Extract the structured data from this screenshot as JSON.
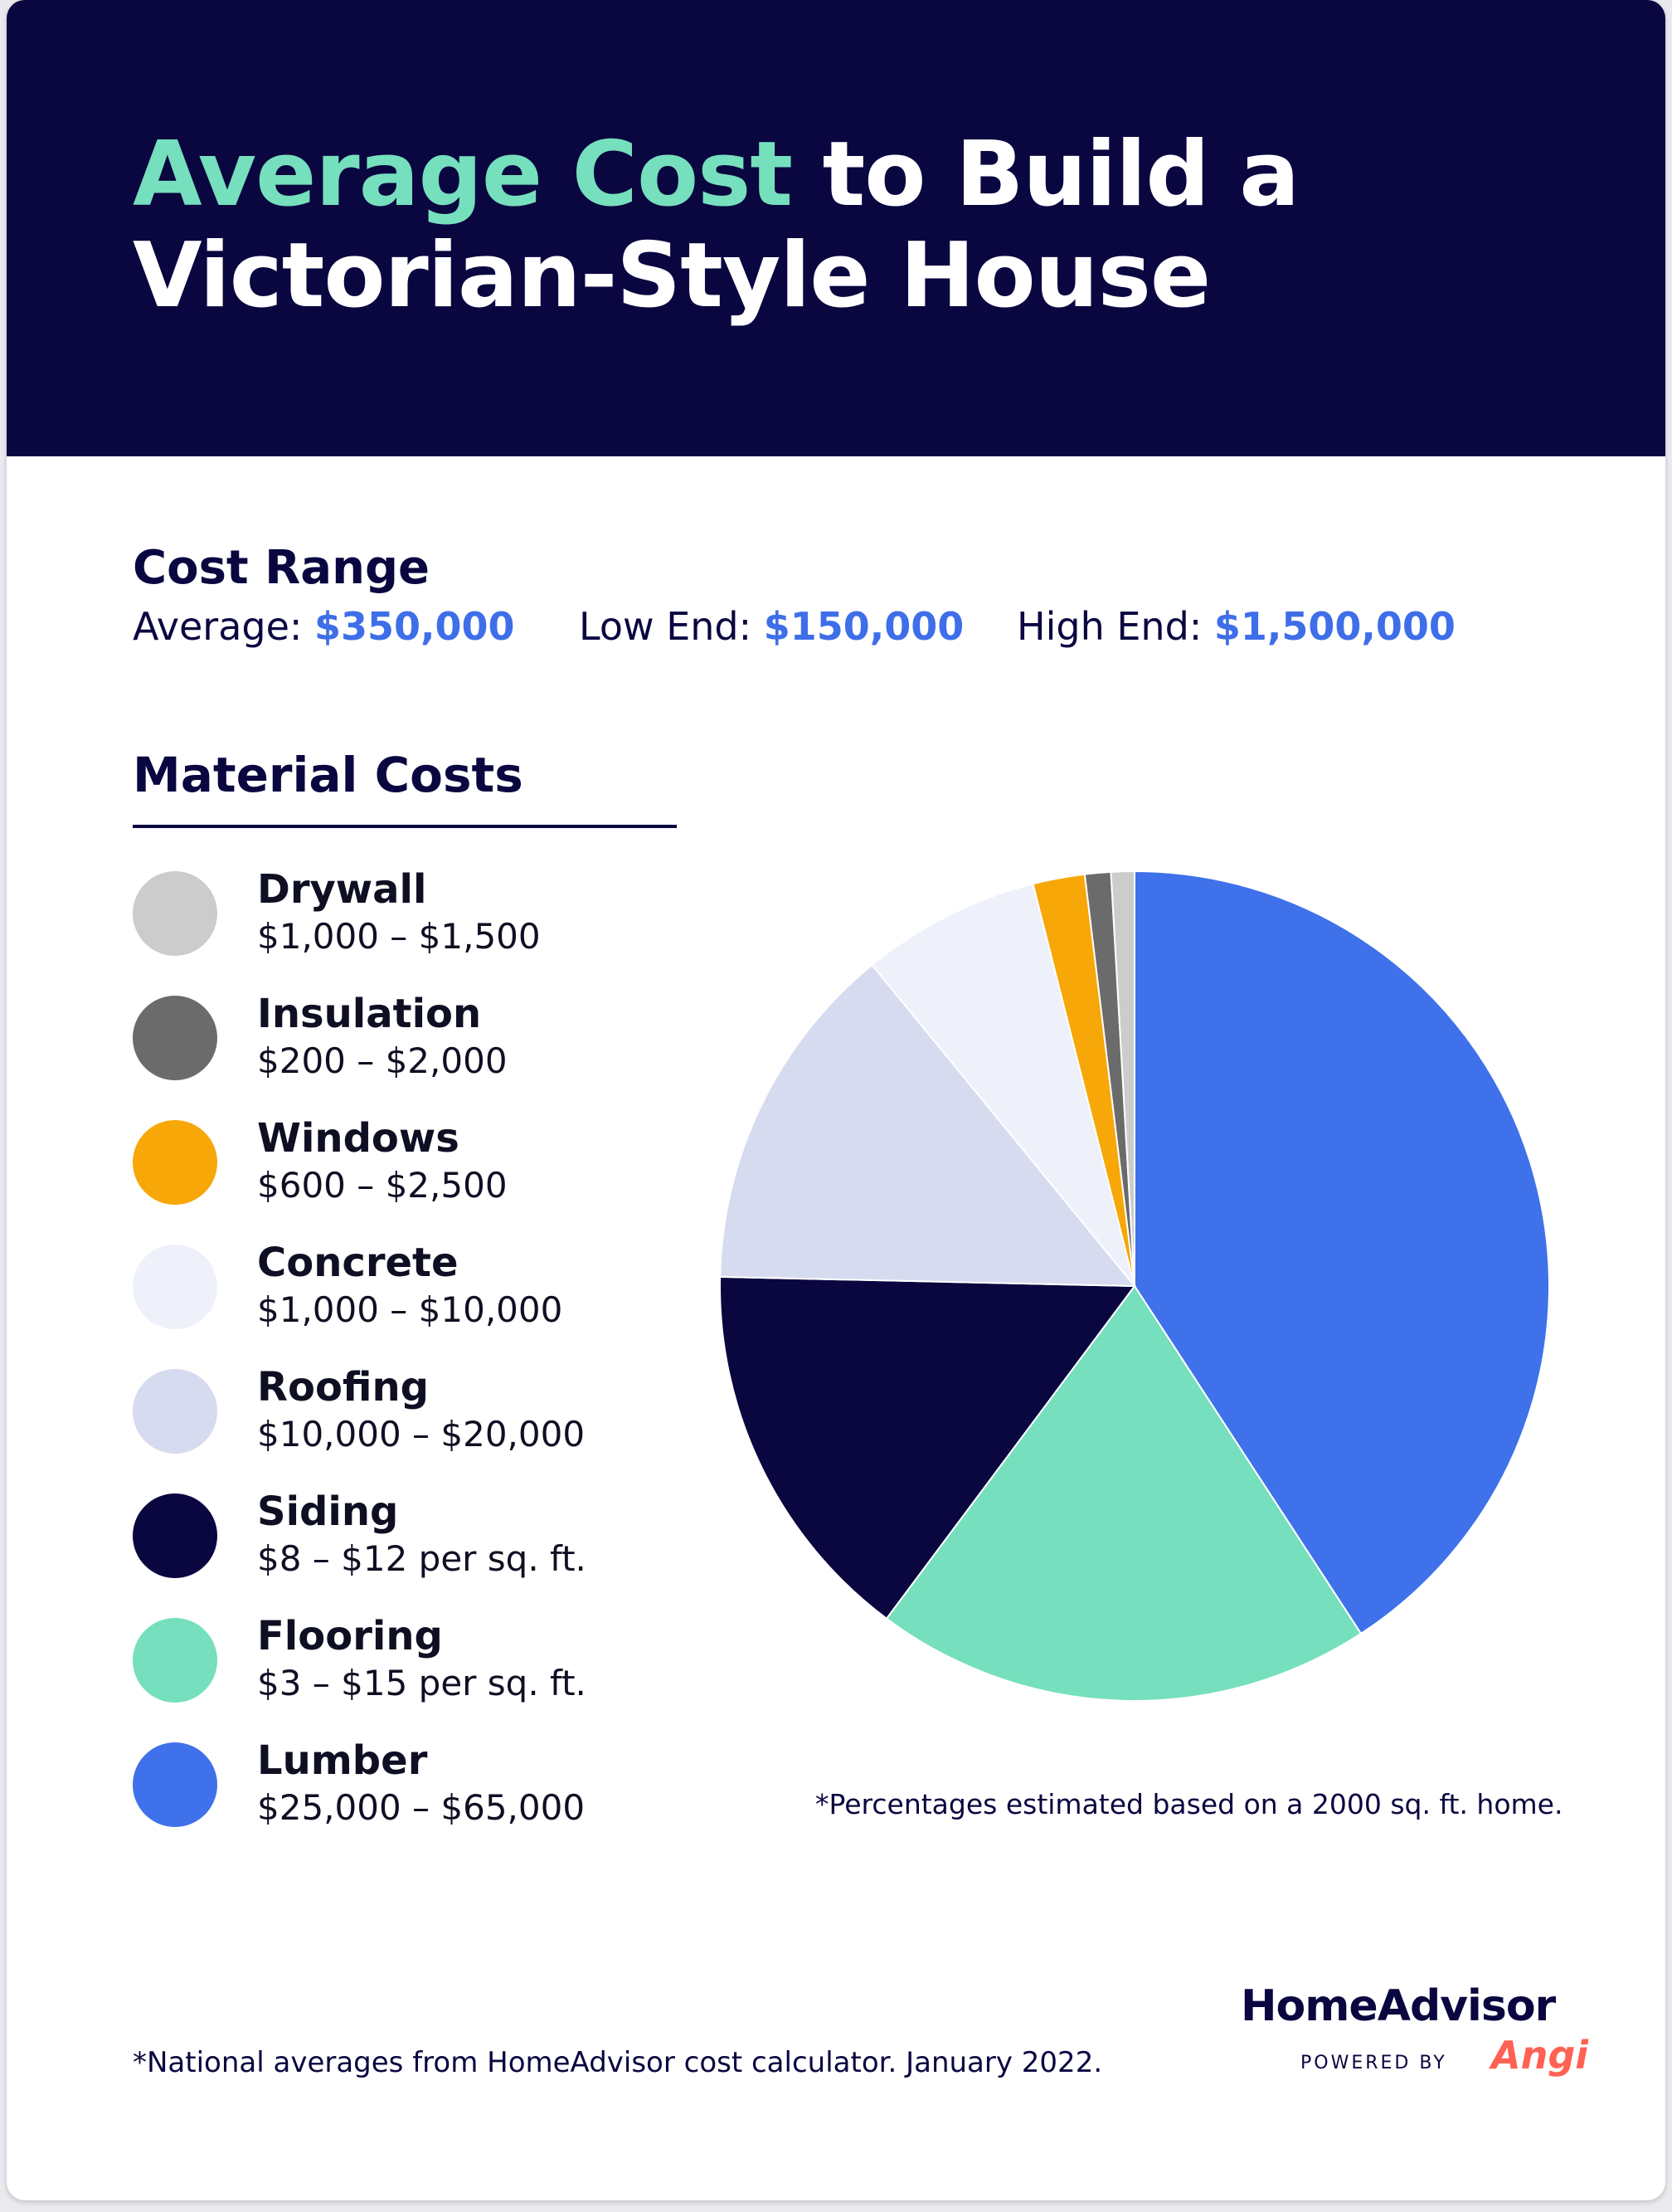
{
  "header": {
    "title_accent": "Average Cost",
    "title_rest_1": " to Build a",
    "title_line2": "Victorian-Style House"
  },
  "cost_range": {
    "title": "Cost Range",
    "average_label": "Average:",
    "average_value": "$350,000",
    "low_label": "Low End:",
    "low_value": "$150,000",
    "high_label": "High End:",
    "high_value": "$1,500,000"
  },
  "material_costs_title": "Material Costs",
  "legend": [
    {
      "name": "Drywall",
      "range": "$1,000 – $1,500"
    },
    {
      "name": "Insulation",
      "range": "$200 – $2,000"
    },
    {
      "name": "Windows",
      "range": "$600 – $2,500"
    },
    {
      "name": "Concrete",
      "range": "$1,000 – $10,000"
    },
    {
      "name": "Roofing",
      "range": "$10,000 – $20,000"
    },
    {
      "name": "Siding",
      "range": "$8 – $12 per sq. ft."
    },
    {
      "name": "Flooring",
      "range": "$3 – $15 per sq. ft."
    },
    {
      "name": "Lumber",
      "range": "$25,000 – $65,000"
    }
  ],
  "chart_data": {
    "type": "pie",
    "unit": "percent",
    "start": "top, clockwise",
    "slices": [
      {
        "label": "Lumber",
        "value": 40.4,
        "color": "#3f71ea"
      },
      {
        "label": "Flooring",
        "value": 19.2,
        "color": "#76dfbd"
      },
      {
        "label": "Siding",
        "value": 15.0,
        "color": "#0a0640"
      },
      {
        "label": "Roofing",
        "value": 13.6,
        "color": "#d6dbef"
      },
      {
        "label": "Concrete",
        "value": 6.9,
        "color": "#eef1fa"
      },
      {
        "label": "Windows",
        "value": 2.0,
        "color": "#f7a707"
      },
      {
        "label": "Insulation",
        "value": 1.0,
        "color": "#6b6b6b"
      },
      {
        "label": "Drywall",
        "value": 0.9,
        "color": "#cccccc"
      }
    ],
    "note": "*Percentages estimated based on a 2000 sq. ft. home."
  },
  "footnote": "*National averages from HomeAdvisor cost calculator. January 2022.",
  "brand": {
    "name": "HomeAdvisor",
    "powered_by": "POWERED BY",
    "partner": "Angi"
  },
  "colors": {
    "navy": "#0a0640",
    "accent_green": "#76dfbd",
    "value_blue": "#3e6ee8"
  }
}
